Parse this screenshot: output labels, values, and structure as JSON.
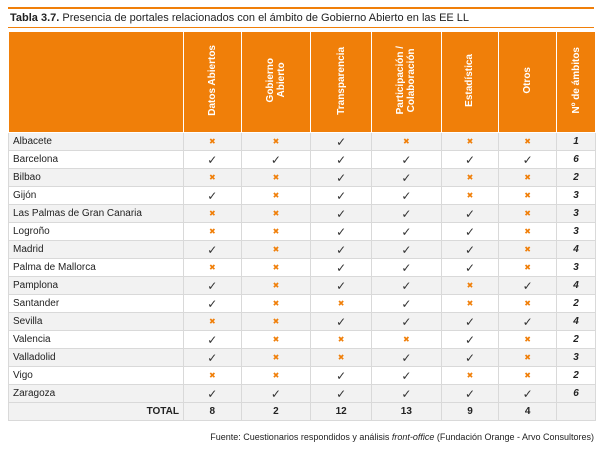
{
  "title": {
    "label": "Tabla 3.7.",
    "text": "Presencia de portales relacionados con el ámbito de Gobierno Abierto en las EE LL"
  },
  "table": {
    "columns": [
      [
        "Datos Abiertos"
      ],
      [
        "Gobierno",
        "Abierto"
      ],
      [
        "Transparencia"
      ],
      [
        "Participación  /",
        "Colaboración"
      ],
      [
        "Estadística"
      ],
      [
        "Otros"
      ],
      [
        "Nº de ámbitos"
      ]
    ],
    "rows": [
      [
        "Albacete",
        "✖",
        "✖",
        "✓",
        "✖",
        "✖",
        "✖",
        1
      ],
      [
        "Barcelona",
        "✓",
        "✓",
        "✓",
        "✓",
        "✓",
        "✓",
        6
      ],
      [
        "Bilbao",
        "✖",
        "✖",
        "✓",
        "✓",
        "✖",
        "✖",
        2
      ],
      [
        "Gijón",
        "✓",
        "✖",
        "✓",
        "✓",
        "✖",
        "✖",
        3
      ],
      [
        "Las Palmas de Gran Canaria",
        "✖",
        "✖",
        "✓",
        "✓",
        "✓",
        "✖",
        3
      ],
      [
        "Logroño",
        "✖",
        "✖",
        "✓",
        "✓",
        "✓",
        "✖",
        3
      ],
      [
        "Madrid",
        "✓",
        "✖",
        "✓",
        "✓",
        "✓",
        "✖",
        4
      ],
      [
        "Palma de Mallorca",
        "✖",
        "✖",
        "✓",
        "✓",
        "✓",
        "✖",
        3
      ],
      [
        "Pamplona",
        "✓",
        "✖",
        "✓",
        "✓",
        "✖",
        "✓",
        4
      ],
      [
        "Santander",
        "✓",
        "✖",
        "✖",
        "✓",
        "✖",
        "✖",
        2
      ],
      [
        "Sevilla",
        "✖",
        "✖",
        "✓",
        "✓",
        "✓",
        "✓",
        4
      ],
      [
        "Valencia",
        "✓",
        "✖",
        "✖",
        "✖",
        "✓",
        "✖",
        2
      ],
      [
        "Valladolid",
        "✓",
        "✖",
        "✖",
        "✓",
        "✓",
        "✖",
        3
      ],
      [
        "Vigo",
        "✖",
        "✖",
        "✓",
        "✓",
        "✖",
        "✖",
        2
      ],
      [
        "Zaragoza",
        "✓",
        "✓",
        "✓",
        "✓",
        "✓",
        "✓",
        6
      ]
    ],
    "total": [
      "TOTAL",
      8,
      2,
      12,
      13,
      9,
      4
    ]
  },
  "footer": {
    "before": "Fuente: Cuestionarios respondidos y análisis ",
    "italic": "front-office",
    "after": " (Fundación Orange - Arvo Consultores)"
  }
}
